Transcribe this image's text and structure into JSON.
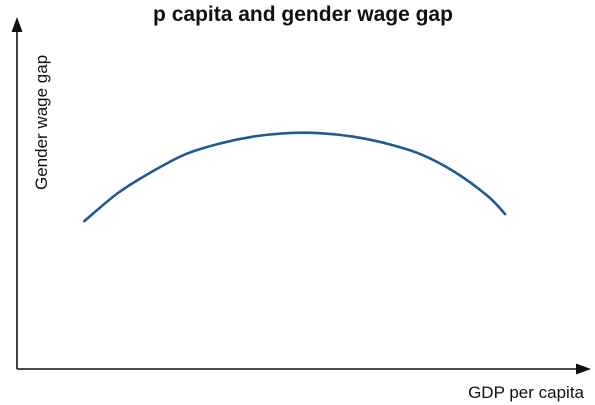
{
  "chart_data": {
    "type": "line",
    "title": "p capita and gender wage gap",
    "xlabel": "GDP per capita",
    "ylabel": "Gender wage gap",
    "grid": false,
    "legend": "none",
    "x_ticks": [],
    "y_ticks": [],
    "xlim": [
      0,
      1
    ],
    "ylim": [
      0,
      1
    ],
    "series": [
      {
        "values": [
          {
            "x": 0.12,
            "y": 0.42
          },
          {
            "x": 0.18,
            "y": 0.5
          },
          {
            "x": 0.24,
            "y": 0.56
          },
          {
            "x": 0.3,
            "y": 0.61
          },
          {
            "x": 0.36,
            "y": 0.64
          },
          {
            "x": 0.42,
            "y": 0.66
          },
          {
            "x": 0.48,
            "y": 0.67
          },
          {
            "x": 0.54,
            "y": 0.67
          },
          {
            "x": 0.6,
            "y": 0.66
          },
          {
            "x": 0.66,
            "y": 0.64
          },
          {
            "x": 0.72,
            "y": 0.61
          },
          {
            "x": 0.78,
            "y": 0.56
          },
          {
            "x": 0.84,
            "y": 0.49
          },
          {
            "x": 0.87,
            "y": 0.44
          }
        ]
      }
    ],
    "colors": {
      "curve": "#1f5a96",
      "axes": "#111111"
    }
  }
}
